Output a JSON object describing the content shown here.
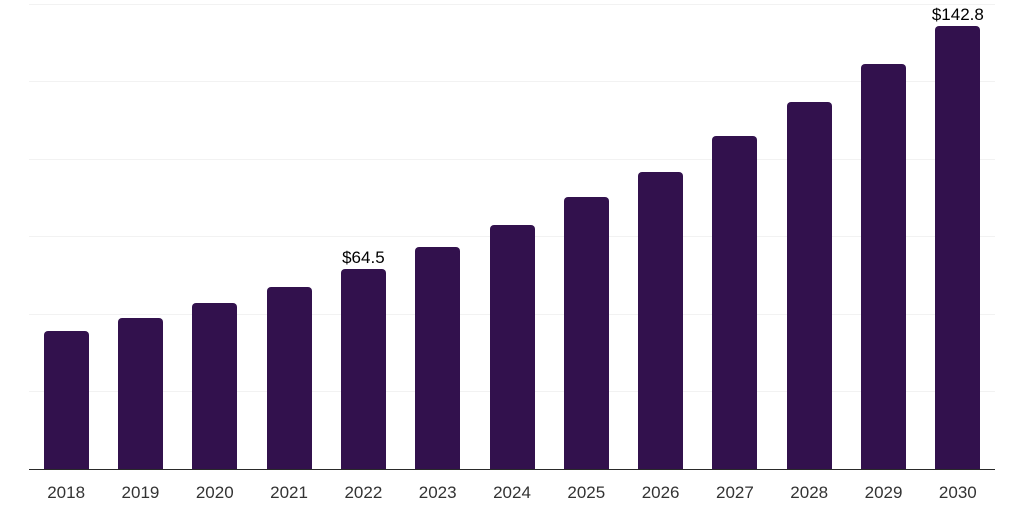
{
  "chart_data": {
    "type": "bar",
    "title": "",
    "xlabel": "",
    "ylabel": "",
    "categories": [
      "2018",
      "2019",
      "2020",
      "2021",
      "2022",
      "2023",
      "2024",
      "2025",
      "2026",
      "2027",
      "2028",
      "2029",
      "2030"
    ],
    "values": [
      44.4,
      48.5,
      53.5,
      58.6,
      64.5,
      71.4,
      78.6,
      87.8,
      95.8,
      107.3,
      118.1,
      130.4,
      142.8
    ],
    "data_labels": [
      "",
      "",
      "",
      "",
      "$64.5",
      "",
      "",
      "",
      "",
      "",
      "",
      "",
      "$142.8"
    ],
    "ylim": [
      0,
      150
    ],
    "grid_step": 25,
    "grid": "horizontal-only",
    "legend": "none",
    "y_tick_labels_visible": false,
    "bar_color": "#32114d",
    "grid_color": "#f2f2f2",
    "axis_color": "#2a2a2a",
    "tick_label_color": "#333333",
    "data_label_color": "#000000",
    "background_color": "#ffffff"
  }
}
